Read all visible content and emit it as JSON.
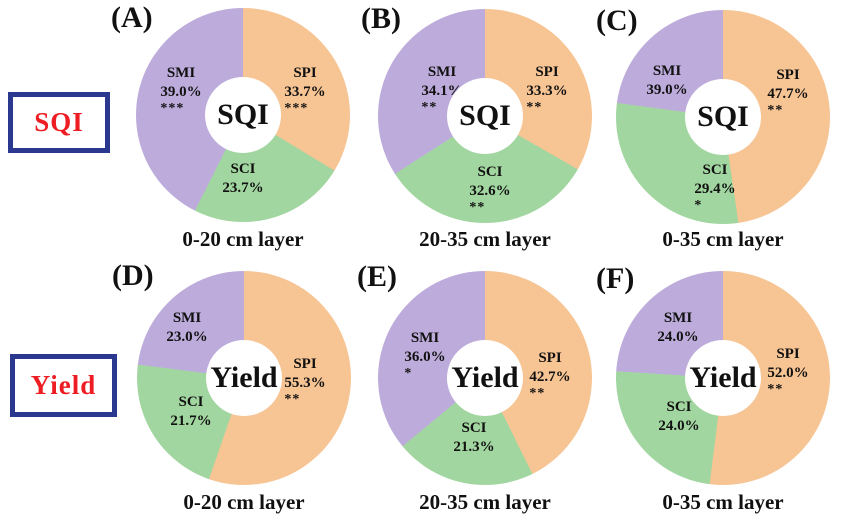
{
  "colors": {
    "SMI": "#BDACDB",
    "SPI": "#F7C494",
    "SCI": "#A2D6A0",
    "header_text": "#EE1D23",
    "header_border": "#2B3890"
  },
  "row_headers": [
    {
      "label": "SQI"
    },
    {
      "label": "Yield"
    }
  ],
  "chart_data": [
    {
      "type": "pie",
      "donut": true,
      "panel": "(A)",
      "row": "SQI",
      "center_label": "SQI",
      "xlabel": "0-20 cm layer",
      "slices": [
        {
          "label": "SPI",
          "value": 33.7,
          "value_label": "33.7%",
          "significance": "***",
          "color": "#F7C494"
        },
        {
          "label": "SCI",
          "value": 23.7,
          "value_label": "23.7%",
          "significance": "",
          "color": "#A2D6A0"
        },
        {
          "label": "SMI",
          "value": 39.0,
          "value_label": "39.0%",
          "significance": "***",
          "color": "#BDACDB"
        }
      ]
    },
    {
      "type": "pie",
      "donut": true,
      "panel": "(B)",
      "row": "SQI",
      "center_label": "SQI",
      "xlabel": "20-35 cm layer",
      "slices": [
        {
          "label": "SPI",
          "value": 33.3,
          "value_label": "33.3%",
          "significance": "**",
          "color": "#F7C494"
        },
        {
          "label": "SCI",
          "value": 32.6,
          "value_label": "32.6%",
          "significance": "**",
          "color": "#A2D6A0"
        },
        {
          "label": "SMI",
          "value": 34.1,
          "value_label": "34.1%",
          "significance": "**",
          "color": "#BDACDB"
        }
      ]
    },
    {
      "type": "pie",
      "donut": true,
      "panel": "(C)",
      "row": "SQI",
      "center_label": "SQI",
      "xlabel": "0-35 cm layer",
      "slices": [
        {
          "label": "SPI",
          "value": 47.7,
          "value_label": "47.7%",
          "significance": "**",
          "color": "#F7C494"
        },
        {
          "label": "SCI",
          "value": 29.4,
          "value_label": "29.4%",
          "significance": "*",
          "color": "#A2D6A0"
        },
        {
          "label": "SMI",
          "value": 39.0,
          "value_label": "39.0%",
          "significance": "",
          "color": "#BDACDB"
        }
      ]
    },
    {
      "type": "pie",
      "donut": true,
      "panel": "(D)",
      "row": "Yield",
      "center_label": "Yield",
      "xlabel": "0-20 cm layer",
      "slices": [
        {
          "label": "SPI",
          "value": 55.3,
          "value_label": "55.3%",
          "significance": "**",
          "color": "#F7C494"
        },
        {
          "label": "SCI",
          "value": 21.7,
          "value_label": "21.7%",
          "significance": "",
          "color": "#A2D6A0"
        },
        {
          "label": "SMI",
          "value": 23.0,
          "value_label": "23.0%",
          "significance": "",
          "color": "#BDACDB"
        }
      ]
    },
    {
      "type": "pie",
      "donut": true,
      "panel": "(E)",
      "row": "Yield",
      "center_label": "Yield",
      "xlabel": "20-35 cm layer",
      "slices": [
        {
          "label": "SPI",
          "value": 42.7,
          "value_label": "42.7%",
          "significance": "**",
          "color": "#F7C494"
        },
        {
          "label": "SCI",
          "value": 21.3,
          "value_label": "21.3%",
          "significance": "",
          "color": "#A2D6A0"
        },
        {
          "label": "SMI",
          "value": 36.0,
          "value_label": "36.0%",
          "significance": "*",
          "color": "#BDACDB"
        }
      ]
    },
    {
      "type": "pie",
      "donut": true,
      "panel": "(F)",
      "row": "Yield",
      "center_label": "Yield",
      "xlabel": "0-35 cm layer",
      "slices": [
        {
          "label": "SPI",
          "value": 52.0,
          "value_label": "52.0%",
          "significance": "**",
          "color": "#F7C494"
        },
        {
          "label": "SCI",
          "value": 24.0,
          "value_label": "24.0%",
          "significance": "",
          "color": "#A2D6A0"
        },
        {
          "label": "SMI",
          "value": 24.0,
          "value_label": "24.0%",
          "significance": "",
          "color": "#BDACDB"
        }
      ]
    }
  ]
}
